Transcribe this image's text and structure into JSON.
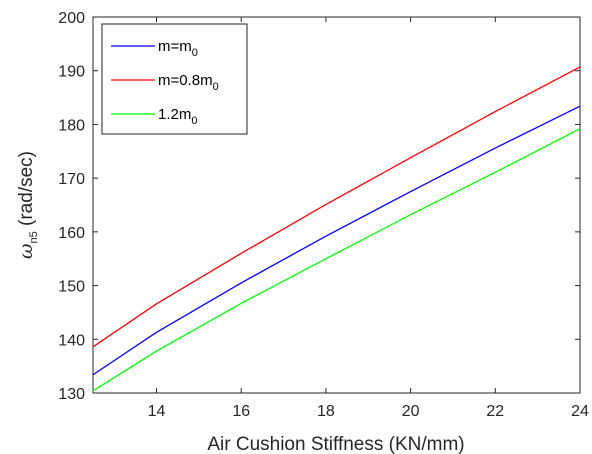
{
  "chart_data": {
    "type": "line",
    "xlabel": "Air Cushion Stiffness (KN/mm)",
    "ylabel": {
      "symbol": "ω",
      "subscript": "n5",
      "units": " (rad/sec)"
    },
    "xlim": [
      12.5,
      24
    ],
    "ylim": [
      130,
      200
    ],
    "xticks": [
      14,
      16,
      18,
      20,
      22,
      24
    ],
    "yticks": [
      130,
      140,
      150,
      160,
      170,
      180,
      190,
      200
    ],
    "grid": false,
    "legend_position": "top-left",
    "x": [
      12.5,
      14,
      16,
      18,
      20,
      22,
      24
    ],
    "series": [
      {
        "name": "m=m0",
        "legend_main": "m=m",
        "legend_sub": "0",
        "color": "#0000ff",
        "values": [
          133.4,
          141.3,
          150.5,
          159.2,
          167.5,
          175.6,
          183.4
        ]
      },
      {
        "name": "m=0.8m0",
        "legend_main": "m=0.8m",
        "legend_sub": "0",
        "color": "#ff0000",
        "values": [
          138.6,
          146.6,
          156.0,
          165.1,
          173.8,
          182.4,
          190.7
        ]
      },
      {
        "name": "1.2m0",
        "legend_main": "1.2m",
        "legend_sub": "0",
        "color": "#00ff00",
        "values": [
          130.4,
          137.8,
          146.7,
          155.0,
          163.2,
          171.1,
          179.2
        ]
      }
    ]
  }
}
